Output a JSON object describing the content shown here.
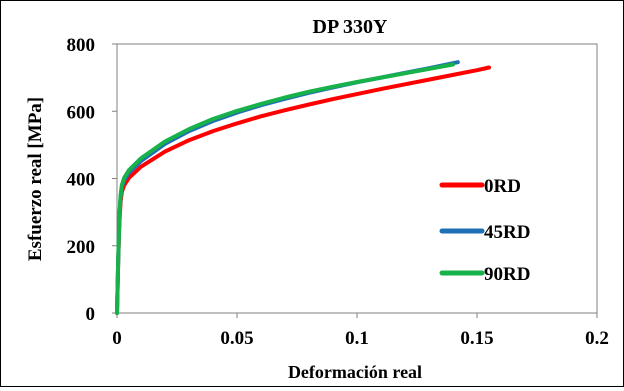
{
  "chart_data": {
    "type": "line",
    "title": "DP 330Y",
    "xlabel": "Deformación real",
    "ylabel": "Esfuerzo real [MPa]",
    "xlim": [
      0,
      0.2
    ],
    "ylim": [
      0,
      800
    ],
    "xticks": [
      "0",
      "0.05",
      "0.1",
      "0.15",
      "0.2"
    ],
    "yticks": [
      "0",
      "200",
      "400",
      "600",
      "800"
    ],
    "grid": false,
    "legend_position": "bottom-right",
    "series": [
      {
        "name": "0RD",
        "color": "#ff0000",
        "points": [
          [
            0,
            0
          ],
          [
            0.0005,
            150
          ],
          [
            0.001,
            270
          ],
          [
            0.0015,
            330
          ],
          [
            0.002,
            360
          ],
          [
            0.003,
            380
          ],
          [
            0.005,
            402
          ],
          [
            0.01,
            435
          ],
          [
            0.02,
            480
          ],
          [
            0.03,
            514
          ],
          [
            0.04,
            541
          ],
          [
            0.05,
            564
          ],
          [
            0.06,
            585
          ],
          [
            0.07,
            603
          ],
          [
            0.08,
            620
          ],
          [
            0.09,
            636
          ],
          [
            0.1,
            651
          ],
          [
            0.11,
            666
          ],
          [
            0.12,
            680
          ],
          [
            0.13,
            694
          ],
          [
            0.14,
            708
          ],
          [
            0.15,
            722
          ],
          [
            0.155,
            730
          ]
        ]
      },
      {
        "name": "45RD",
        "color": "#1f6fb5",
        "points": [
          [
            0,
            0
          ],
          [
            0.0005,
            160
          ],
          [
            0.001,
            285
          ],
          [
            0.0015,
            345
          ],
          [
            0.002,
            375
          ],
          [
            0.003,
            395
          ],
          [
            0.005,
            418
          ],
          [
            0.01,
            452
          ],
          [
            0.02,
            503
          ],
          [
            0.03,
            541
          ],
          [
            0.04,
            571
          ],
          [
            0.05,
            596
          ],
          [
            0.06,
            618
          ],
          [
            0.07,
            637
          ],
          [
            0.08,
            655
          ],
          [
            0.09,
            671
          ],
          [
            0.1,
            686
          ],
          [
            0.11,
            700
          ],
          [
            0.12,
            714
          ],
          [
            0.13,
            728
          ],
          [
            0.14,
            743
          ],
          [
            0.142,
            746
          ]
        ]
      },
      {
        "name": "90RD",
        "color": "#17b24a",
        "points": [
          [
            0,
            0
          ],
          [
            0.0005,
            160
          ],
          [
            0.001,
            290
          ],
          [
            0.0015,
            350
          ],
          [
            0.002,
            380
          ],
          [
            0.003,
            402
          ],
          [
            0.005,
            425
          ],
          [
            0.01,
            460
          ],
          [
            0.02,
            510
          ],
          [
            0.03,
            547
          ],
          [
            0.04,
            577
          ],
          [
            0.05,
            601
          ],
          [
            0.06,
            622
          ],
          [
            0.07,
            641
          ],
          [
            0.08,
            658
          ],
          [
            0.09,
            673
          ],
          [
            0.1,
            687
          ],
          [
            0.11,
            700
          ],
          [
            0.12,
            713
          ],
          [
            0.13,
            726
          ],
          [
            0.14,
            739
          ]
        ]
      }
    ]
  }
}
